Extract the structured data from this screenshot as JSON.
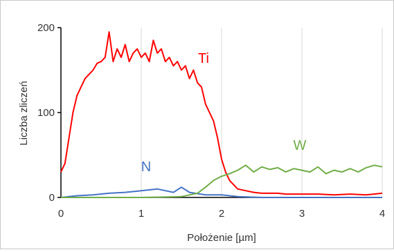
{
  "chart_data": {
    "type": "line",
    "xlabel": "Położenie [µm]",
    "ylabel": "Liczba zliczeń",
    "xlim": [
      0,
      4
    ],
    "ylim": [
      0,
      200
    ],
    "xticks": [
      0,
      1,
      2,
      3,
      4
    ],
    "yticks": [
      0,
      100,
      200
    ],
    "grid": "vertical",
    "legend": "inline labels",
    "series": [
      {
        "name": "Ti",
        "color": "#ff0000",
        "x": [
          0,
          0.05,
          0.1,
          0.15,
          0.2,
          0.25,
          0.3,
          0.35,
          0.4,
          0.45,
          0.5,
          0.55,
          0.6,
          0.65,
          0.7,
          0.75,
          0.8,
          0.85,
          0.9,
          0.95,
          1.0,
          1.05,
          1.1,
          1.15,
          1.2,
          1.25,
          1.3,
          1.35,
          1.4,
          1.45,
          1.5,
          1.55,
          1.6,
          1.65,
          1.7,
          1.75,
          1.8,
          1.85,
          1.9,
          1.95,
          2.0,
          2.05,
          2.1,
          2.15,
          2.2,
          2.3,
          2.4,
          2.5,
          2.6,
          2.7,
          2.8,
          2.9,
          3.0,
          3.2,
          3.4,
          3.6,
          3.8,
          4.0
        ],
        "y": [
          30,
          40,
          70,
          100,
          120,
          130,
          140,
          145,
          150,
          158,
          160,
          165,
          195,
          160,
          175,
          165,
          180,
          160,
          170,
          175,
          165,
          170,
          160,
          185,
          170,
          175,
          160,
          165,
          155,
          160,
          150,
          155,
          140,
          150,
          135,
          130,
          110,
          100,
          90,
          70,
          45,
          30,
          20,
          15,
          10,
          8,
          6,
          5,
          5,
          5,
          4,
          4,
          4,
          4,
          3,
          4,
          3,
          5
        ]
      },
      {
        "name": "N",
        "color": "#4472c4",
        "x": [
          0,
          0.2,
          0.4,
          0.6,
          0.8,
          1.0,
          1.2,
          1.4,
          1.5,
          1.6,
          1.8,
          2.0,
          2.2,
          2.5,
          3.0,
          3.5,
          4.0
        ],
        "y": [
          0,
          2,
          3,
          5,
          6,
          8,
          10,
          6,
          12,
          6,
          3,
          3,
          1,
          0,
          0,
          0,
          0
        ]
      },
      {
        "name": "W",
        "color": "#70ad47",
        "x": [
          0,
          0.5,
          1.0,
          1.5,
          1.7,
          1.8,
          1.9,
          2.0,
          2.1,
          2.2,
          2.3,
          2.4,
          2.5,
          2.6,
          2.7,
          2.8,
          2.9,
          3.0,
          3.1,
          3.2,
          3.3,
          3.4,
          3.5,
          3.6,
          3.7,
          3.8,
          3.9,
          4.0
        ],
        "y": [
          0,
          0,
          0,
          1,
          5,
          12,
          20,
          25,
          28,
          32,
          38,
          30,
          36,
          33,
          35,
          30,
          34,
          32,
          30,
          36,
          28,
          32,
          30,
          34,
          30,
          35,
          38,
          36
        ]
      }
    ]
  }
}
